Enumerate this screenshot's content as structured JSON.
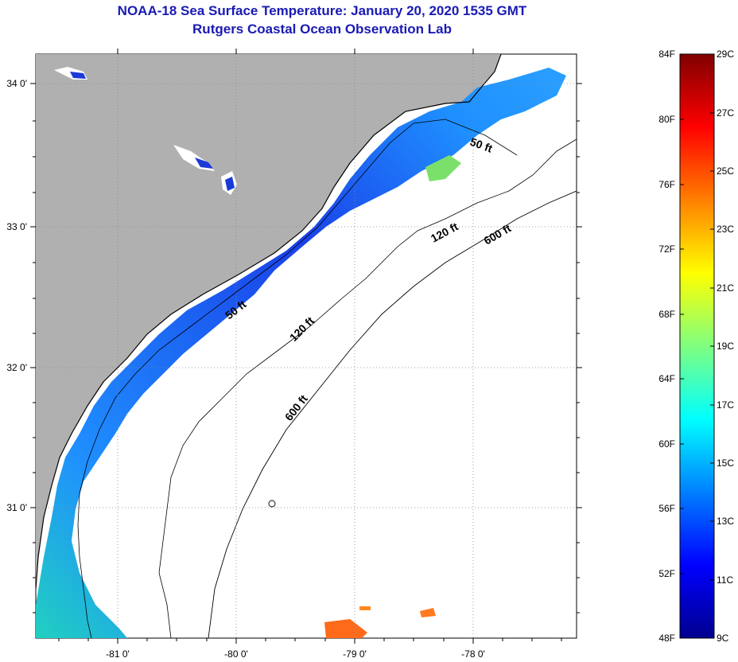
{
  "title": {
    "line1": "NOAA-18 Sea Surface Temperature:  January 20, 2020 1535 GMT",
    "line2": "Rutgers Coastal Ocean Observation Lab"
  },
  "map": {
    "lat_ticks": [
      "34 0'",
      "33 0'",
      "32 0'",
      "31 0'"
    ],
    "lon_ticks": [
      "-81 0'",
      "-80 0'",
      "-79 0'",
      "-78 0'"
    ],
    "contour_labels": [
      "50 ft",
      "120 ft",
      "600 ft",
      "50 ft",
      "120 ft",
      "600 ft"
    ]
  },
  "colorbar": {
    "fahrenheit": [
      "84F",
      "80F",
      "76F",
      "72F",
      "68F",
      "64F",
      "60F",
      "56F",
      "52F",
      "48F"
    ],
    "celsius": [
      "29C",
      "27C",
      "25C",
      "23C",
      "21C",
      "19C",
      "17C",
      "15C",
      "13C",
      "11C",
      "9C"
    ]
  },
  "colors": {
    "land": "#b0b0b0",
    "title": "#1a1ab4",
    "colormap": "jet"
  }
}
